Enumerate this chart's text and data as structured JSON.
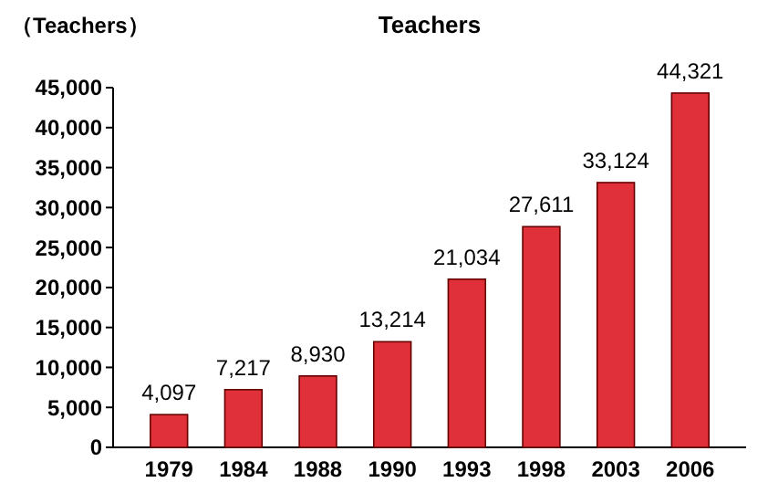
{
  "chart_data": {
    "type": "bar",
    "title": "Teachers",
    "ylabel": "（Teachers）",
    "categories": [
      "1979",
      "1984",
      "1988",
      "1990",
      "1993",
      "1998",
      "2003",
      "2006"
    ],
    "values": [
      4097,
      7217,
      8930,
      13214,
      21034,
      27611,
      33124,
      44321
    ],
    "value_labels": [
      "4,097",
      "7,217",
      "8,930",
      "13,214",
      "21,034",
      "27,611",
      "33,124",
      "44,321"
    ],
    "color": "#e0303a",
    "ylim": [
      0,
      45000
    ],
    "yticks": [
      0,
      {
        "value": 5000,
        "label": "5,000"
      },
      {
        "value": 10000,
        "label": "10,000"
      },
      {
        "value": 15000,
        "label": "15,000"
      },
      {
        "value": 20000,
        "label": "20,000"
      },
      {
        "value": 25000,
        "label": "25,000"
      },
      {
        "value": 30000,
        "label": "30,000"
      },
      {
        "value": 35000,
        "label": "35,000"
      },
      {
        "value": 40000,
        "label": "40,000"
      },
      {
        "value": 45000,
        "label": "45,000"
      }
    ],
    "grid": false
  }
}
